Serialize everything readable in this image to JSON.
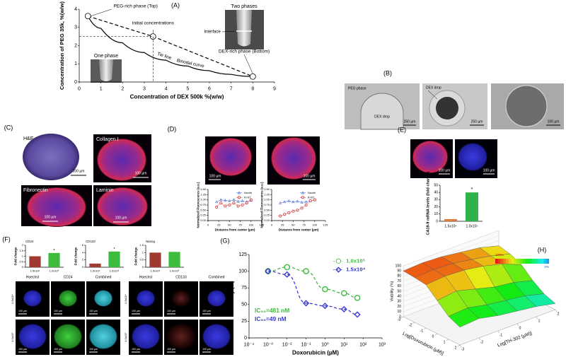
{
  "panels": {
    "A": {
      "label": "(A)",
      "photos": {
        "one_phase": "One phase",
        "two_phases": "Two phases",
        "interface": "Interface"
      }
    },
    "B": {
      "label": "(B)",
      "images": [
        {
          "texts": [
            "PEG phase",
            "DEX drop"
          ],
          "scale": "250 µm"
        },
        {
          "texts": [
            "DEX drop"
          ],
          "scale": "250 µm"
        },
        {
          "scale": "100 µm"
        }
      ]
    },
    "C": {
      "label": "(C)",
      "images": [
        {
          "title": "H&E",
          "scale": "100 µm"
        },
        {
          "title": "Collagen I",
          "scale": "100 µm"
        },
        {
          "title": "Fibronectin",
          "scale": "100 µm"
        },
        {
          "title": "Laminin",
          "scale": "100 µm"
        }
      ]
    },
    "D": {
      "label": "(D)",
      "scales": [
        "100 µm",
        "100 µm"
      ]
    },
    "E": {
      "label": "(E)",
      "scales": [
        "100 µm",
        "100 µm"
      ]
    },
    "F": {
      "label": "(F)",
      "columns": [
        "Hoechst",
        "CD24",
        "Combined",
        "Hoechst",
        "CD133",
        "Combined"
      ],
      "rows": [
        "1.5x10⁴",
        "1.0x10⁵"
      ],
      "scale": "100 µm"
    },
    "G": {
      "label": "(G)"
    },
    "H": {
      "label": "(H)"
    }
  },
  "chart_data": [
    {
      "type": "line",
      "xlabel": "Concentration of DEX 500k %(w/w)",
      "ylabel": "Concentration of PEG 35k, %(w/w)",
      "xlim": [
        0,
        9
      ],
      "xticks": [
        0,
        1,
        2,
        3,
        4,
        5,
        6,
        7,
        8,
        9
      ],
      "ylim": [
        0,
        4
      ],
      "yticks": [
        0,
        1,
        2,
        3,
        4
      ],
      "series": [
        {
          "name": "Binodal curve",
          "color": "#000000",
          "x": [
            0.4,
            1,
            2,
            3,
            4,
            5,
            6,
            7,
            8
          ],
          "values": [
            3.62,
            2.95,
            2.15,
            1.62,
            1.2,
            0.88,
            0.62,
            0.42,
            0.3
          ]
        },
        {
          "name": "Tie line",
          "color": "#000000",
          "dash": true,
          "marker": "circle",
          "x": [
            0.4,
            3.4,
            8
          ],
          "values": [
            3.62,
            2.5,
            0.3
          ]
        }
      ],
      "annotations": [
        "PEG-rich phase (Top)",
        "Initial concentrations",
        "DEX-rich phase (Bottom)"
      ]
    },
    {
      "type": "line",
      "xlabel": "Distance from center (µm)",
      "ylabel": "Normalized Fluorescence (a.u.)",
      "legend": "upper right",
      "xlim": [
        0,
        125
      ],
      "xticks": [
        0,
        25,
        50,
        75,
        100,
        125
      ],
      "ylim": [
        0,
        1.5
      ],
      "yticks": [
        {
          "value": 0,
          "label": "0.00"
        },
        {
          "value": 0.25,
          "label": "0.25"
        },
        {
          "value": 0.5,
          "label": "0.50"
        },
        {
          "value": 0.75,
          "label": "0.75"
        },
        {
          "value": 1,
          "label": "1.00"
        },
        {
          "value": 1.25,
          "label": "1.25"
        },
        {
          "value": 1.5,
          "label": "1.50"
        }
      ],
      "series": [
        {
          "name": "Nuclei",
          "color": "#4a6fd6",
          "marker": "triangle",
          "x": [
            20,
            30,
            40,
            50,
            60,
            70,
            80,
            90,
            100
          ],
          "values": [
            0.9,
            1.0,
            0.97,
            0.95,
            1.0,
            0.92,
            0.95,
            0.9,
            0.97
          ]
        },
        {
          "name": "Ki-67",
          "color": "#e03030",
          "marker": "circle",
          "x": [
            20,
            30,
            40,
            50,
            60,
            70,
            80,
            90,
            100
          ],
          "values": [
            0.65,
            0.85,
            0.7,
            0.75,
            0.85,
            0.7,
            0.75,
            0.85,
            1.0
          ]
        }
      ]
    },
    {
      "type": "line",
      "xlabel": "Distance from center (µm)",
      "ylabel": "Normalized Fluorescence (a.u.)",
      "legend": "upper right",
      "xlim": [
        0,
        125
      ],
      "xticks": [
        0,
        25,
        50,
        75,
        100,
        125
      ],
      "ylim": [
        0,
        1.5
      ],
      "yticks": [
        {
          "value": 0,
          "label": "0.00"
        },
        {
          "value": 0.25,
          "label": "0.25"
        },
        {
          "value": 0.5,
          "label": "0.50"
        },
        {
          "value": 0.75,
          "label": "0.75"
        },
        {
          "value": 1,
          "label": "1.00"
        },
        {
          "value": 1.25,
          "label": "1.25"
        },
        {
          "value": 1.5,
          "label": "1.50"
        }
      ],
      "series": [
        {
          "name": "Nuclei",
          "color": "#4a6fd6",
          "marker": "triangle",
          "x": [
            20,
            30,
            40,
            50,
            60,
            70,
            80,
            90,
            100
          ],
          "values": [
            0.85,
            0.9,
            0.95,
            0.9,
            0.93,
            0.88,
            0.9,
            0.95,
            1.0
          ]
        },
        {
          "name": "Ki-67",
          "color": "#e03030",
          "marker": "circle",
          "x": [
            20,
            30,
            40,
            50,
            60,
            70,
            80,
            90,
            100
          ],
          "values": [
            0.22,
            0.3,
            0.38,
            0.45,
            0.5,
            0.6,
            0.75,
            0.95,
            1.0
          ]
        }
      ]
    },
    {
      "type": "bar",
      "ylabel": "CA19-9 mRNA levels (fold change)",
      "categories": [
        "1.5x10⁴",
        "1.0x10⁵"
      ],
      "values": [
        3,
        40
      ],
      "colors": [
        "#e07b39",
        "#2db34a"
      ],
      "ylim": [
        0,
        50
      ],
      "yticks": [
        0,
        10,
        20,
        30,
        40,
        50
      ],
      "annotations": [
        "*"
      ]
    },
    {
      "type": "bar",
      "title": "CD24",
      "ylabel": "Fold change",
      "categories": [
        "1.5x10⁴",
        "1.0x10⁵"
      ],
      "values": [
        1.0,
        1.3
      ],
      "colors": [
        "#a0392f",
        "#3dbb3d"
      ],
      "ylim": [
        0,
        2
      ],
      "yticks": [
        0,
        0.5,
        1,
        1.5,
        2
      ],
      "annotations": [
        "*"
      ]
    },
    {
      "type": "bar",
      "title": "CD133",
      "ylabel": "Fold change",
      "categories": [
        "1.5x10⁴",
        "1.0x10⁵"
      ],
      "values": [
        1.0,
        4.3
      ],
      "colors": [
        "#a0392f",
        "#3dbb3d"
      ],
      "ylim": [
        0,
        6
      ],
      "yticks": [
        0,
        2,
        4,
        6
      ],
      "annotations": [
        "*"
      ]
    },
    {
      "type": "bar",
      "title": "Nanog",
      "ylabel": "Fold change",
      "categories": [
        "1.5x10⁴",
        "1.0x10⁵"
      ],
      "values": [
        1.0,
        1.05
      ],
      "colors": [
        "#a0392f",
        "#3dbb3d"
      ],
      "ylim": [
        0,
        1.5
      ],
      "yticks": [
        0,
        0.5,
        1,
        1.5
      ]
    },
    {
      "type": "scatter",
      "xlabel": "Doxorubicin (µM)",
      "ylabel": "Viability (%)",
      "xlog": true,
      "legend": "upper right",
      "xlim": [
        0.0001,
        1000
      ],
      "xticks": [
        {
          "value": 0.0001,
          "label": "10⁻⁴"
        },
        {
          "value": 0.001,
          "label": "10⁻³"
        },
        {
          "value": 0.01,
          "label": "10⁻²"
        },
        {
          "value": 0.1,
          "label": "10⁻¹"
        },
        {
          "value": 1,
          "label": "10⁰"
        },
        {
          "value": 10,
          "label": "10¹"
        },
        {
          "value": 100,
          "label": "10²"
        },
        {
          "value": 1000,
          "label": "10³"
        }
      ],
      "ylim": [
        0,
        125
      ],
      "yticks": [
        0,
        25,
        50,
        75,
        100,
        125
      ],
      "series": [
        {
          "name": "1.0x10⁵",
          "color": "#3dbb3d",
          "marker": "circle",
          "x": [
            0.001,
            0.01,
            0.1,
            1,
            10,
            50
          ],
          "values": [
            100,
            106,
            100,
            73,
            67,
            60
          ]
        },
        {
          "name": "1.5x10⁴",
          "color": "#3a3ad0",
          "marker": "diamond",
          "x": [
            0.001,
            0.01,
            0.1,
            1,
            10,
            50
          ],
          "values": [
            100,
            95,
            52,
            48,
            43,
            35
          ]
        }
      ],
      "annotations": [
        "IC₅₀=481 nM",
        "IC₅₀=49 nM"
      ]
    },
    {
      "type": "surface",
      "xlabel": "Log[Doxorubicin (µM)]",
      "ylabel": "Log[TH-302 (µM)]",
      "zlabel": "Viability (%)",
      "x": [
        -3,
        -2,
        -1,
        0,
        1,
        2
      ],
      "y": [
        -3,
        -2,
        -1,
        0,
        1,
        2
      ],
      "xlim": [
        -3,
        2
      ],
      "ylim": [
        -3,
        2
      ],
      "xticks": [
        -3,
        -2,
        -1,
        0,
        1,
        2
      ],
      "yticks": [
        -3,
        -2,
        -1,
        0,
        1,
        2
      ],
      "zlim": [
        0,
        100
      ],
      "zticks": [
        0,
        10,
        20,
        30,
        40,
        50,
        60,
        70,
        80,
        90,
        100
      ],
      "values": [
        [
          90,
          92,
          90,
          85,
          80,
          70
        ],
        [
          88,
          90,
          88,
          82,
          75,
          65
        ],
        [
          85,
          88,
          86,
          80,
          70,
          55
        ],
        [
          65,
          70,
          60,
          50,
          45,
          35
        ],
        [
          45,
          48,
          40,
          35,
          30,
          20
        ],
        [
          35,
          38,
          30,
          25,
          20,
          12
        ]
      ],
      "colorbar": [
        "100%",
        "0%"
      ]
    }
  ]
}
